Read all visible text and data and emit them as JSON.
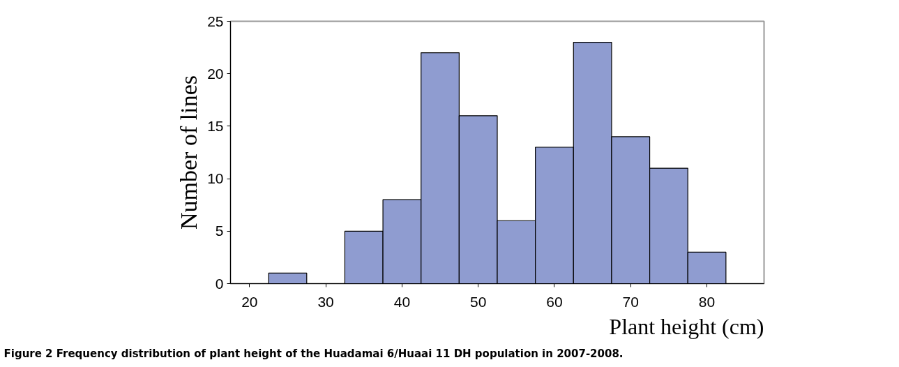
{
  "chart_data": {
    "type": "histogram",
    "xlabel": "Plant height (cm)",
    "ylabel": "Number of lines",
    "bins": [
      22.5,
      27.5,
      32.5,
      37.5,
      42.5,
      47.5,
      52.5,
      57.5,
      62.5,
      67.5,
      72.5,
      77.5,
      82.5
    ],
    "values": [
      1,
      0,
      5,
      8,
      22,
      16,
      6,
      13,
      23,
      14,
      11,
      3
    ],
    "color": "#8f9cd0",
    "xlim": [
      17.5,
      87.5
    ],
    "xticks": [
      20,
      30,
      40,
      50,
      60,
      70,
      80
    ],
    "ylim": [
      0,
      25
    ],
    "yticks": [
      0,
      5,
      10,
      15,
      20,
      25
    ],
    "grid": false,
    "annotations": [
      "Figure 2 Frequency distribution of plant height of the Huadamai 6/Huaai 11 DH population in 2007-2008."
    ]
  }
}
